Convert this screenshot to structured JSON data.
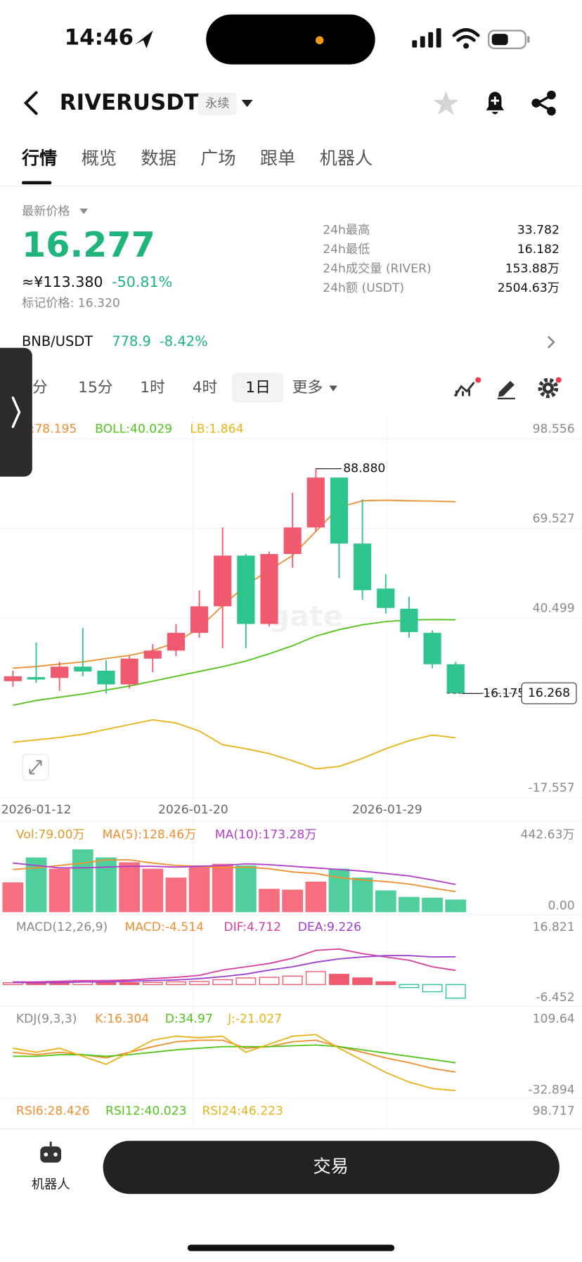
{
  "status_bar": {
    "time": "14:46"
  },
  "nav": {
    "symbol": "RIVERUSDT",
    "badge": "永续"
  },
  "tabs": [
    "行情",
    "概览",
    "数据",
    "广场",
    "跟单",
    "机器人"
  ],
  "price": {
    "label": "最新价格",
    "last": "16.277",
    "cny": "≈¥113.380",
    "change": "-50.81%",
    "mark": "标记价格: 16.320"
  },
  "stats": [
    {
      "label": "24h最高",
      "value": "33.782"
    },
    {
      "label": "24h最低",
      "value": "16.182"
    },
    {
      "label": "24h成交量 (RIVER)",
      "value": "153.88万"
    },
    {
      "label": "24h额 (USDT)",
      "value": "2504.63万"
    }
  ],
  "related": {
    "pair": "BNB/USDT",
    "price": "778.9",
    "change": "-8.42%"
  },
  "intervals": [
    "分",
    "15分",
    "1时",
    "4时",
    "1日",
    "更多"
  ],
  "kline": {
    "labels": [
      {
        "text": ":78.195",
        "color": "#ef8f2f"
      },
      {
        "text": "BOLL:40.029",
        "color": "#52c41a"
      },
      {
        "text": "LB:1.864",
        "color": "#e8b316"
      }
    ],
    "yticks": [
      98.556,
      69.527,
      40.499,
      -17.557
    ],
    "dates": [
      "2026-01-12",
      "2026-01-20",
      "2026-01-29"
    ],
    "candles": [
      {
        "open": 20.18,
        "high": 23.57,
        "low": 18.36,
        "close": 21.75
      },
      {
        "open": 21.48,
        "high": 32.67,
        "low": 19.66,
        "close": 20.7
      },
      {
        "open": 21.22,
        "high": 26.43,
        "low": 17.06,
        "close": 24.87
      },
      {
        "open": 24.87,
        "high": 37.36,
        "low": 21.75,
        "close": 23.31
      },
      {
        "open": 23.57,
        "high": 26.95,
        "low": 16.175,
        "close": 19.14
      },
      {
        "open": 19.14,
        "high": 28.25,
        "low": 17.84,
        "close": 27.47
      },
      {
        "open": 27.47,
        "high": 32.15,
        "low": 23.05,
        "close": 30.07
      },
      {
        "open": 30.07,
        "high": 38.66,
        "low": 28.25,
        "close": 35.8
      },
      {
        "open": 35.8,
        "high": 49.59,
        "low": 34.24,
        "close": 44.38
      },
      {
        "open": 44.38,
        "high": 69.88,
        "low": 30.85,
        "close": 60.78
      },
      {
        "open": 60.78,
        "high": 61.3,
        "low": 30.85,
        "close": 38.66
      },
      {
        "open": 38.66,
        "high": 62.08,
        "low": 37.88,
        "close": 61.3
      },
      {
        "open": 61.3,
        "high": 81.07,
        "low": 56.87,
        "close": 69.88
      },
      {
        "open": 69.88,
        "high": 88.88,
        "low": 68.58,
        "close": 86.02
      },
      {
        "open": 86.02,
        "high": 86.02,
        "low": 53.49,
        "close": 64.68
      },
      {
        "open": 64.68,
        "high": 78.99,
        "low": 46.47,
        "close": 49.59
      },
      {
        "open": 50.11,
        "high": 54.79,
        "low": 42.04,
        "close": 43.86
      },
      {
        "open": 43.6,
        "high": 47.5,
        "low": 34.24,
        "close": 36.06
      },
      {
        "open": 35.8,
        "high": 36.58,
        "low": 24.35,
        "close": 25.65
      },
      {
        "open": 25.65,
        "high": 26.43,
        "low": 16.02,
        "close": 16.277
      }
    ],
    "overlays": [
      {
        "color": "#ef8f2f",
        "values": [
          24.4,
          24.9,
          25.7,
          26.4,
          27.5,
          28.5,
          30.1,
          32.7,
          37.4,
          44.6,
          51.2,
          56.1,
          60.8,
          68.6,
          76.4,
          78.5,
          78.7,
          78.5,
          78.4,
          78.195
        ]
      },
      {
        "color": "#52c41a",
        "values": [
          12.38,
          13.94,
          14.98,
          16.02,
          17.3,
          18.6,
          20.18,
          21.75,
          23.31,
          24.87,
          26.69,
          29.03,
          31.63,
          34.76,
          36.84,
          38.4,
          39.44,
          39.96,
          40.09,
          40.029
        ]
      },
      {
        "color": "#e8b316",
        "values": [
          0.41,
          1.19,
          1.97,
          3.01,
          4.57,
          6.13,
          7.69,
          6.65,
          4.05,
          -0.37,
          -1.67,
          -3.24,
          -5.58,
          -8.18,
          -7.4,
          -4.8,
          -1.67,
          0.93,
          2.75,
          1.864
        ]
      }
    ],
    "high_mark": {
      "value": 88.88,
      "label": "88.880"
    },
    "low_mark": 16.175,
    "last_mark": 16.268
  },
  "volume": {
    "labels": [
      {
        "text": "Vol:79.00万",
        "color": "#e09a2a"
      },
      {
        "text": "MA(5):128.46万",
        "color": "#ef8f2f"
      },
      {
        "text": "MA(10):173.28万",
        "color": "#b23fc9"
      }
    ],
    "yticks": [
      {
        "value": 442.63,
        "label": "442.63万"
      },
      {
        "value": 0,
        "label": "0.00"
      }
    ],
    "values": [
      186.1,
      342,
      271.6,
      392.4,
      342,
      311.9,
      271.6,
      216.3,
      291.8,
      301.8,
      291.8,
      145.9,
      140.8,
      191.1,
      271.6,
      216.3,
      135.8,
      95.6,
      90.5,
      79
    ],
    "lines": [
      {
        "color": "#ef8f2f",
        "values": [
          266.6,
          276.7,
          291.8,
          306.8,
          327,
          327,
          306.8,
          291.8,
          286.7,
          276.7,
          281.7,
          271.6,
          251.5,
          241.5,
          216.3,
          201.2,
          191.1,
          176.1,
          150.9,
          128.46
        ]
      },
      {
        "color": "#b23fc9",
        "values": [
          306.8,
          291.8,
          276.7,
          276.7,
          281.7,
          286.7,
          286.7,
          281.7,
          286.7,
          291.8,
          301.8,
          296.8,
          286.7,
          276.7,
          266.6,
          256.5,
          241.5,
          226.4,
          201.2,
          173.28
        ]
      }
    ]
  },
  "macd": {
    "labels": [
      {
        "text": "MACD(12,26,9)",
        "color": "#8a8a8a"
      },
      {
        "text": "MACD:-4.514",
        "color": "#ef8f2f"
      },
      {
        "text": "DIF:4.712",
        "color": "#d63fa0"
      },
      {
        "text": "DEA:9.226",
        "color": "#9b3fd0"
      }
    ],
    "yticks": [
      16.821,
      -6.452
    ],
    "hist": [
      0.6,
      0.6,
      0.6,
      0.8,
      0.6,
      0.6,
      0.7,
      0.9,
      1.0,
      1.6,
      2.2,
      2.4,
      2.8,
      4.3,
      3.4,
      2.2,
      0.9,
      -1.0,
      -2.4,
      -4.514
    ],
    "lines": [
      {
        "color": "#d63fa0",
        "values": [
          0.87,
          0.87,
          1.09,
          1.31,
          1.31,
          1.53,
          1.97,
          2.4,
          3.06,
          4.81,
          5.9,
          6.99,
          8.74,
          11.36,
          11.8,
          10.27,
          9.17,
          8.08,
          5.9,
          4.712
        ]
      },
      {
        "color": "#9b3fd0",
        "values": [
          0.66,
          0.66,
          0.66,
          0.87,
          0.87,
          1.09,
          1.31,
          1.53,
          1.97,
          2.62,
          3.49,
          4.81,
          5.9,
          7.43,
          8.52,
          9.17,
          9.61,
          9.61,
          9.17,
          9.226
        ]
      }
    ]
  },
  "kdj": {
    "labels": [
      {
        "text": "KDJ(9,3,3)",
        "color": "#8a8a8a"
      },
      {
        "text": "K:16.304",
        "color": "#ef8f2f"
      },
      {
        "text": "D:34.97",
        "color": "#52c41a"
      },
      {
        "text": "J:-21.027",
        "color": "#e8b316"
      }
    ],
    "yticks": [
      109.64,
      -32.894
    ],
    "lines": [
      {
        "color": "#ef8f2f",
        "values": [
          56.2,
          51.3,
          56.2,
          51.3,
          44.9,
          56.2,
          67.5,
          77.3,
          80.5,
          80.5,
          64.3,
          67.5,
          77.3,
          80.5,
          67.5,
          56.2,
          44.9,
          35.2,
          23.8,
          16.304
        ]
      },
      {
        "color": "#52c41a",
        "values": [
          48.1,
          48.1,
          51.3,
          51.3,
          48.1,
          51.3,
          56.2,
          61.1,
          64.3,
          67.5,
          67.5,
          67.5,
          69.2,
          70.8,
          67.5,
          61.1,
          54.6,
          48.1,
          41.6,
          34.97
        ]
      },
      {
        "color": "#e8b316",
        "values": [
          64.3,
          56.2,
          64.3,
          48.1,
          31.9,
          56.2,
          80.5,
          88.6,
          85.4,
          88.6,
          56.2,
          72.4,
          88.6,
          91.8,
          64.3,
          40.0,
          15.7,
          -3.7,
          -16.7,
          -21.027
        ]
      }
    ]
  },
  "rsi": {
    "labels": [
      {
        "text": "RSI6:28.426",
        "color": "#ef8f2f"
      },
      {
        "text": "RSI12:40.023",
        "color": "#52c41a"
      },
      {
        "text": "RSI24:46.223",
        "color": "#e8b316"
      }
    ],
    "yticks": [
      98.717
    ]
  },
  "bottom": {
    "robot": "机器人",
    "trade": "交易"
  }
}
